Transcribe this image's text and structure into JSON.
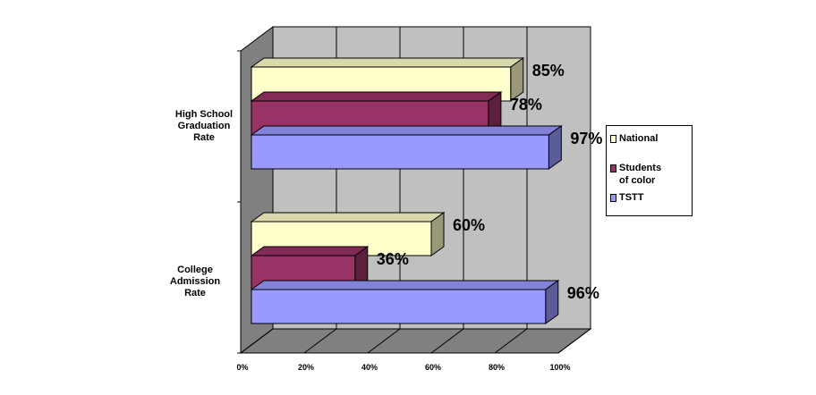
{
  "chart_data": {
    "type": "bar",
    "orientation": "horizontal",
    "style": "3d-clustered",
    "categories": [
      "High School Graduation Rate",
      "College Admission Rate"
    ],
    "series": [
      {
        "name": "National",
        "values": [
          85,
          60
        ],
        "labels": [
          "85%",
          "60%"
        ],
        "color": "#ffffcc"
      },
      {
        "name": "Students of color",
        "values": [
          78,
          36
        ],
        "labels": [
          "78%",
          "36%"
        ],
        "color": "#993366"
      },
      {
        "name": "TSTT",
        "values": [
          97,
          96
        ],
        "labels": [
          "97%",
          "96%"
        ],
        "color": "#9999ff"
      }
    ],
    "x_ticks": [
      "0%",
      "20%",
      "40%",
      "60%",
      "80%",
      "100%"
    ],
    "xlim": [
      0,
      100
    ],
    "grid": true,
    "legend_position": "right",
    "wall_color": "#c0c0c0",
    "floor_color": "#808080"
  },
  "category_label_lines": [
    [
      "High School",
      "Graduation",
      "Rate"
    ],
    [
      "College",
      "Admission",
      "Rate"
    ]
  ],
  "legend_lines": [
    [
      "National"
    ],
    [
      "Students",
      "of color"
    ],
    [
      "TSTT"
    ]
  ]
}
